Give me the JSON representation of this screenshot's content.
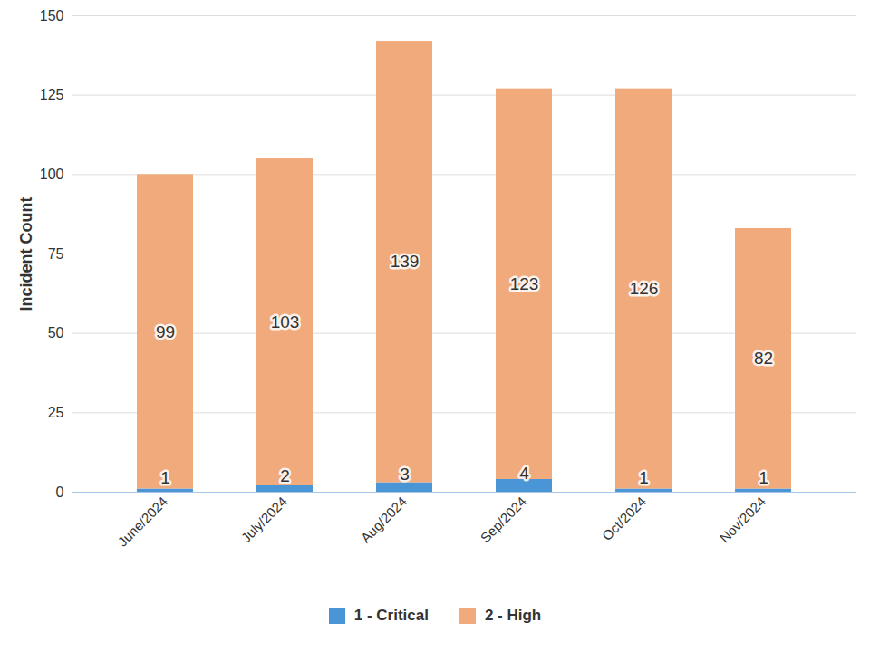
{
  "chart_data": {
    "type": "bar",
    "stacked": true,
    "data_labels": true,
    "grid": true,
    "legend": "bottom",
    "y_label": "Incident Count",
    "categories": [
      "June/2024",
      "July/2024",
      "Aug/2024",
      "Sep/2024",
      "Oct/2024",
      "Nov/2024"
    ],
    "series": [
      {
        "name": "1 - Critical",
        "color": "#4a95d6",
        "values": [
          1,
          2,
          3,
          4,
          1,
          1
        ]
      },
      {
        "name": "2 - High",
        "color": "#f0aa7b",
        "values": [
          99,
          103,
          139,
          123,
          126,
          82
        ]
      }
    ],
    "ylim": [
      0,
      150
    ],
    "yticks": [
      0,
      25,
      50,
      75,
      100,
      125,
      150
    ]
  }
}
